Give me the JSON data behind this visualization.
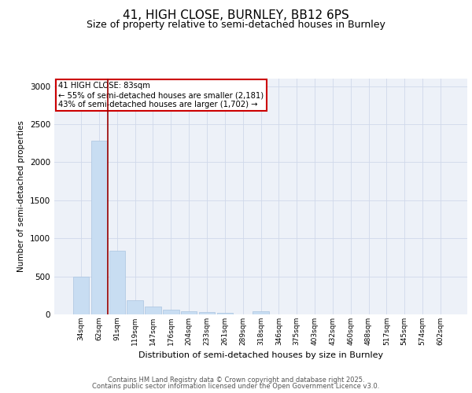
{
  "title1": "41, HIGH CLOSE, BURNLEY, BB12 6PS",
  "title2": "Size of property relative to semi-detached houses in Burnley",
  "xlabel": "Distribution of semi-detached houses by size in Burnley",
  "ylabel": "Number of semi-detached properties",
  "categories": [
    "34sqm",
    "62sqm",
    "91sqm",
    "119sqm",
    "147sqm",
    "176sqm",
    "204sqm",
    "233sqm",
    "261sqm",
    "289sqm",
    "318sqm",
    "346sqm",
    "375sqm",
    "403sqm",
    "432sqm",
    "460sqm",
    "488sqm",
    "517sqm",
    "545sqm",
    "574sqm",
    "602sqm"
  ],
  "values": [
    500,
    2280,
    840,
    190,
    105,
    65,
    40,
    30,
    25,
    0,
    45,
    0,
    0,
    0,
    0,
    0,
    0,
    0,
    0,
    0,
    0
  ],
  "bar_color": "#c8ddf2",
  "bar_edge_color": "#aac4e0",
  "vline_x": 1.5,
  "vline_color": "#990000",
  "annotation_text": "41 HIGH CLOSE: 83sqm\n← 55% of semi-detached houses are smaller (2,181)\n43% of semi-detached houses are larger (1,702) →",
  "annotation_box_color": "#ffffff",
  "annotation_box_edge": "#cc0000",
  "ylim": [
    0,
    3100
  ],
  "yticks": [
    0,
    500,
    1000,
    1500,
    2000,
    2500,
    3000
  ],
  "grid_color": "#d0d8ea",
  "bg_color": "#edf1f8",
  "footer1": "Contains HM Land Registry data © Crown copyright and database right 2025.",
  "footer2": "Contains public sector information licensed under the Open Government Licence v3.0.",
  "title_fontsize": 11,
  "subtitle_fontsize": 9
}
